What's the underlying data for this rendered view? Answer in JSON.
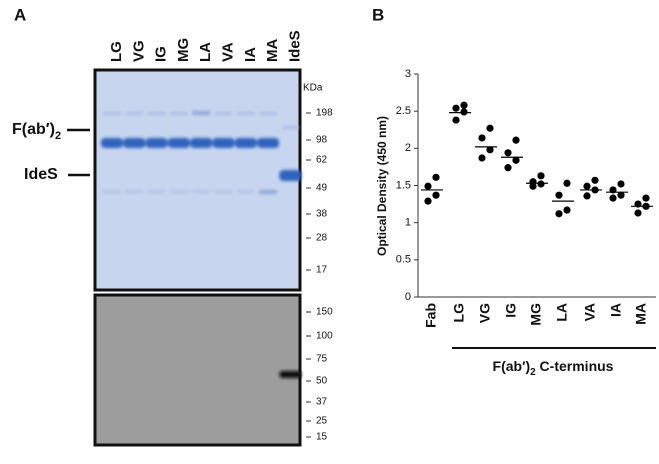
{
  "panel_labels": [
    "A",
    "B"
  ],
  "gel": {
    "lanes": [
      "LG",
      "VG",
      "IG",
      "MG",
      "LA",
      "VA",
      "IA",
      "MA",
      "IdeS"
    ],
    "marker_unit": "KDa",
    "gel_markers": [
      198,
      98,
      62,
      49,
      38,
      28,
      17
    ],
    "blot_markers": [
      150,
      100,
      75,
      50,
      37,
      25,
      15
    ],
    "side_labels": [
      {
        "text": "F(ab′)",
        "sub": "2"
      },
      {
        "text": "IdeS"
      }
    ]
  },
  "chart_data": {
    "type": "strip",
    "y_label": "Optical Density (450 nm)",
    "categories": [
      "Fab",
      "LG",
      "VG",
      "IG",
      "MG",
      "LA",
      "VA",
      "IA",
      "MA"
    ],
    "points": [
      [
        1.61,
        1.49,
        1.37,
        1.29
      ],
      [
        2.58,
        2.54,
        2.49,
        2.38
      ],
      [
        2.27,
        2.14,
        1.98,
        1.87
      ],
      [
        2.11,
        1.94,
        1.84,
        1.74
      ],
      [
        1.63,
        1.55,
        1.52,
        1.49
      ],
      [
        1.53,
        1.37,
        1.17,
        1.12
      ],
      [
        1.57,
        1.49,
        1.44,
        1.36
      ],
      [
        1.52,
        1.44,
        1.37,
        1.33
      ],
      [
        1.33,
        1.25,
        1.22,
        1.13
      ]
    ],
    "means": [
      1.44,
      2.48,
      2.02,
      1.88,
      1.53,
      1.29,
      1.44,
      1.41,
      1.22
    ],
    "group_label": {
      "text": "F(ab′)",
      "sub": "2",
      "rest": " C-terminus"
    },
    "ylim": [
      0,
      3
    ],
    "yticks": [
      0,
      0.5,
      1,
      1.5,
      2,
      2.5,
      3
    ],
    "color": "#000000"
  }
}
